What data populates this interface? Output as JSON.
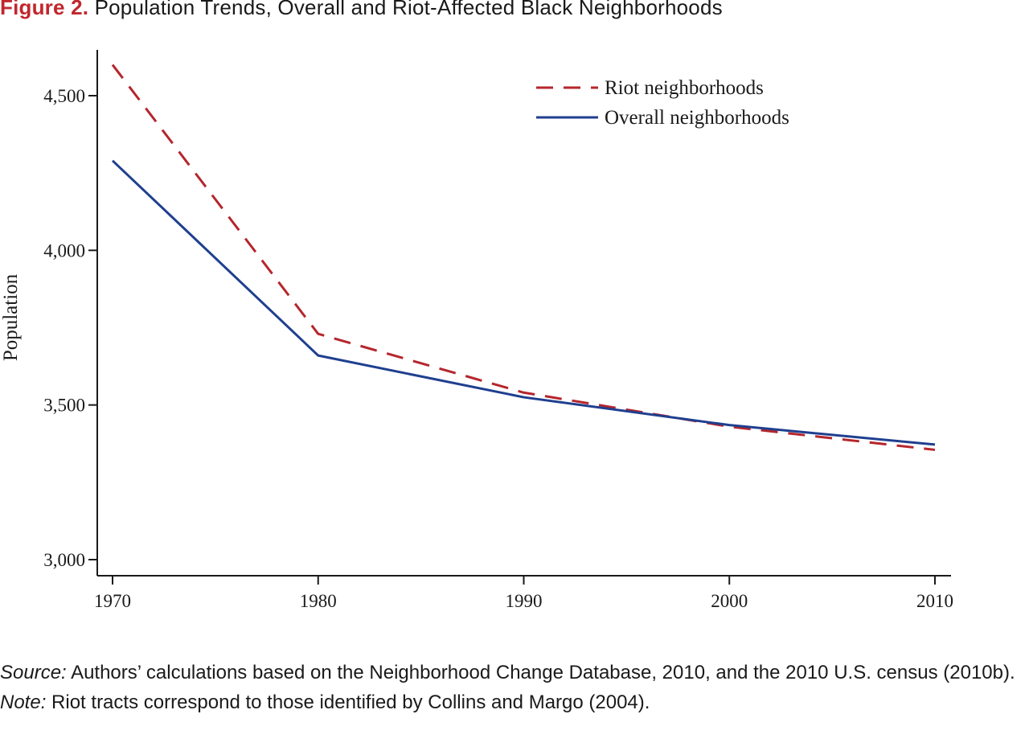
{
  "figure": {
    "label": "Figure 2.",
    "title": "Population Trends, Overall and Riot-Affected Black Neighborhoods"
  },
  "chart_data": {
    "type": "line",
    "x": [
      1970,
      1980,
      1990,
      2000,
      2010
    ],
    "series": [
      {
        "name": "Riot neighborhoods",
        "values": [
          4600,
          3730,
          3540,
          3430,
          3355
        ],
        "color": "#b5262c",
        "dash": "dashed"
      },
      {
        "name": "Overall neighborhoods",
        "values": [
          4290,
          3660,
          3525,
          3435,
          3372
        ],
        "color": "#1f3f8f",
        "dash": "solid"
      }
    ],
    "ylabel": "Population",
    "xlabel": "",
    "ylim": [
      2950,
      4650
    ],
    "yticks": [
      3000,
      3500,
      4000,
      4500
    ],
    "ytick_labels": [
      "3,000",
      "3,500",
      "4,000",
      "4,500"
    ],
    "xticks": [
      1970,
      1980,
      1990,
      2000,
      2010
    ],
    "xtick_labels": [
      "1970",
      "1980",
      "1990",
      "2000",
      "2010"
    ],
    "legend_position": "top-right",
    "grid": false
  },
  "source": {
    "label": "Source:",
    "text": "Authors’ calculations based on the Neighborhood Change Database, 2010, and the 2010 U.S. census (2010b)."
  },
  "note": {
    "label": "Note:",
    "text": "Riot tracts correspond to those identified by Collins and Margo (2004)."
  }
}
